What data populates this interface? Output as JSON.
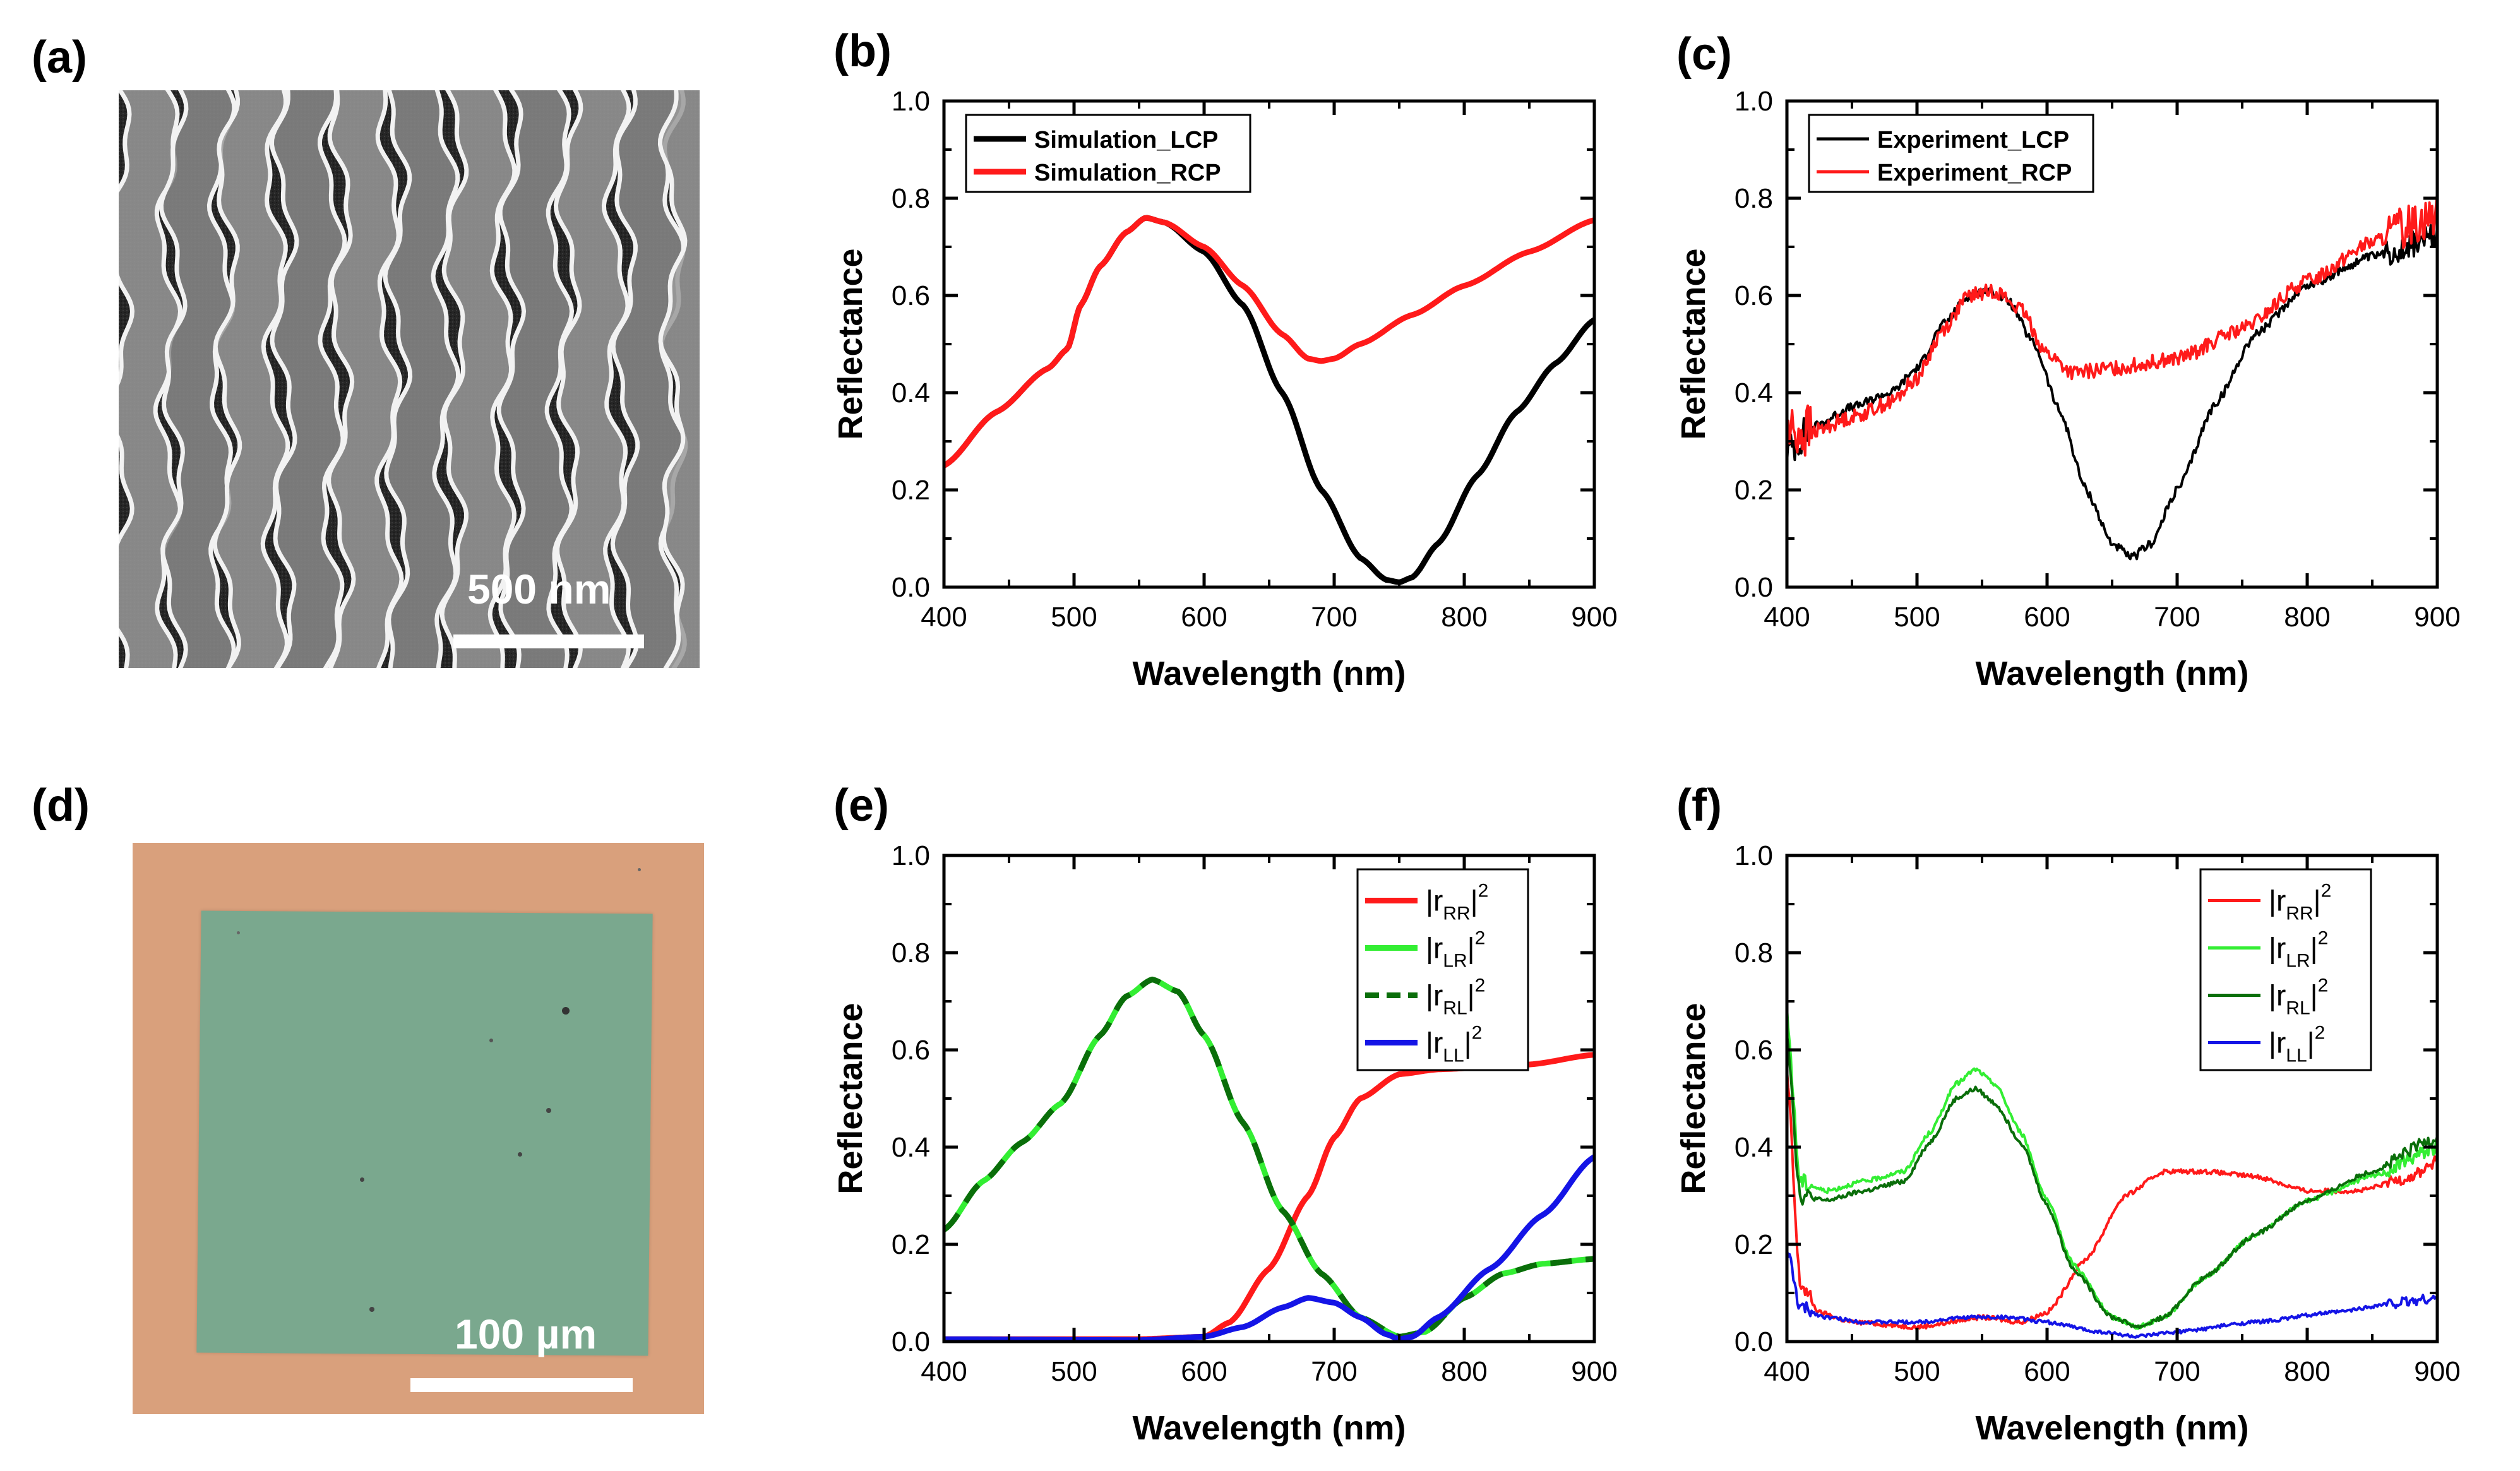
{
  "panel_labels": {
    "a": "(a)",
    "b": "(b)",
    "c": "(c)",
    "d": "(d)",
    "e": "(e)",
    "f": "(f)"
  },
  "images": {
    "sem": {
      "scale_label": "500 nm"
    },
    "optical": {
      "scale_label": "100 µm"
    }
  },
  "colors": {
    "black": "#000000",
    "red": "#ff1a1a",
    "green_light": "#33ee33",
    "green_dark": "#0a6e0a",
    "blue": "#1414e6",
    "sample_orange": "#d9a07c",
    "sample_green": "#7aa88e"
  },
  "chart_data": [
    {
      "id": "b",
      "type": "line",
      "xlabel": "Wavelength (nm)",
      "ylabel": "Reflectance",
      "xlim": [
        400,
        900
      ],
      "ylim": [
        0,
        1.0
      ],
      "xticks": [
        "400",
        "500",
        "600",
        "700",
        "800",
        "900"
      ],
      "yticks": [
        "0.0",
        "0.2",
        "0.4",
        "0.6",
        "0.8",
        "1.0"
      ],
      "legend_position": "top-left",
      "series": [
        {
          "name": "Simulation_LCP",
          "color": "#000000",
          "style": "solid",
          "noise": 0,
          "x": [
            400,
            440,
            480,
            495,
            505,
            520,
            540,
            555,
            570,
            600,
            630,
            660,
            690,
            720,
            740,
            750,
            760,
            780,
            810,
            840,
            870,
            900
          ],
          "y": [
            0.25,
            0.36,
            0.45,
            0.49,
            0.58,
            0.66,
            0.73,
            0.76,
            0.75,
            0.69,
            0.58,
            0.4,
            0.2,
            0.06,
            0.015,
            0.01,
            0.02,
            0.09,
            0.23,
            0.36,
            0.46,
            0.55
          ]
        },
        {
          "name": "Simulation_RCP",
          "color": "#ff1a1a",
          "style": "solid",
          "noise": 0,
          "x": [
            400,
            440,
            480,
            495,
            505,
            520,
            540,
            555,
            570,
            600,
            630,
            660,
            680,
            690,
            700,
            720,
            760,
            800,
            850,
            900
          ],
          "y": [
            0.25,
            0.36,
            0.45,
            0.49,
            0.58,
            0.66,
            0.73,
            0.76,
            0.75,
            0.7,
            0.62,
            0.52,
            0.47,
            0.465,
            0.47,
            0.5,
            0.56,
            0.62,
            0.69,
            0.755
          ]
        }
      ]
    },
    {
      "id": "c",
      "type": "line",
      "xlabel": "Wavelength (nm)",
      "ylabel": "Reflectance",
      "xlim": [
        400,
        900
      ],
      "ylim": [
        0,
        1.0
      ],
      "xticks": [
        "400",
        "500",
        "600",
        "700",
        "800",
        "900"
      ],
      "yticks": [
        "0.0",
        "0.2",
        "0.4",
        "0.6",
        "0.8",
        "1.0"
      ],
      "legend_position": "top-left",
      "series": [
        {
          "name": "Experiment_LCP",
          "color": "#000000",
          "style": "solid",
          "noise": 0.03,
          "x": [
            400,
            420,
            450,
            480,
            500,
            520,
            540,
            555,
            570,
            590,
            610,
            630,
            650,
            665,
            680,
            700,
            730,
            760,
            800,
            850,
            900
          ],
          "y": [
            0.28,
            0.33,
            0.37,
            0.4,
            0.45,
            0.54,
            0.6,
            0.61,
            0.59,
            0.5,
            0.36,
            0.2,
            0.09,
            0.06,
            0.09,
            0.2,
            0.38,
            0.52,
            0.62,
            0.68,
            0.72
          ]
        },
        {
          "name": "Experiment_RCP",
          "color": "#ff1a1a",
          "style": "solid",
          "noise": 0.05,
          "x": [
            400,
            420,
            450,
            480,
            500,
            520,
            540,
            560,
            580,
            600,
            620,
            650,
            700,
            750,
            800,
            850,
            900
          ],
          "y": [
            0.32,
            0.32,
            0.35,
            0.38,
            0.43,
            0.53,
            0.6,
            0.61,
            0.57,
            0.48,
            0.44,
            0.45,
            0.47,
            0.53,
            0.63,
            0.71,
            0.77
          ]
        }
      ]
    },
    {
      "id": "e",
      "type": "line",
      "xlabel": "Wavelength (nm)",
      "ylabel": "Reflectance",
      "xlim": [
        400,
        900
      ],
      "ylim": [
        0,
        1.0
      ],
      "xticks": [
        "400",
        "500",
        "600",
        "700",
        "800",
        "900"
      ],
      "yticks": [
        "0.0",
        "0.2",
        "0.4",
        "0.6",
        "0.8",
        "1.0"
      ],
      "legend_position": "top-right",
      "series": [
        {
          "name": "|rRR|²",
          "main": "|r",
          "sub": "RR",
          "sup": "2",
          "color": "#ff1a1a",
          "style": "solid",
          "noise": 0,
          "x": [
            400,
            550,
            600,
            620,
            650,
            680,
            700,
            720,
            750,
            780,
            850,
            900
          ],
          "y": [
            0.005,
            0.005,
            0.01,
            0.04,
            0.15,
            0.3,
            0.42,
            0.5,
            0.55,
            0.56,
            0.57,
            0.59
          ]
        },
        {
          "name": "|rLR|²",
          "main": "|r",
          "sub": "LR",
          "sup": "2",
          "color": "#33ee33",
          "style": "solid",
          "noise": 0,
          "x": [
            400,
            430,
            460,
            490,
            520,
            540,
            560,
            580,
            600,
            630,
            660,
            690,
            720,
            750,
            770,
            800,
            830,
            860,
            900
          ],
          "y": [
            0.23,
            0.33,
            0.41,
            0.49,
            0.63,
            0.71,
            0.745,
            0.72,
            0.63,
            0.45,
            0.27,
            0.14,
            0.05,
            0.01,
            0.02,
            0.09,
            0.14,
            0.16,
            0.17
          ]
        },
        {
          "name": "|rRL|²",
          "main": "|r",
          "sub": "RL",
          "sup": "2",
          "color": "#0a6e0a",
          "style": "dashed",
          "noise": 0,
          "x": [
            400,
            430,
            460,
            490,
            520,
            540,
            560,
            580,
            600,
            630,
            660,
            690,
            720,
            750,
            770,
            800,
            830,
            860,
            900
          ],
          "y": [
            0.23,
            0.33,
            0.41,
            0.49,
            0.63,
            0.71,
            0.745,
            0.72,
            0.63,
            0.45,
            0.27,
            0.14,
            0.05,
            0.01,
            0.02,
            0.09,
            0.14,
            0.16,
            0.17
          ]
        },
        {
          "name": "|rLL|²",
          "main": "|r",
          "sub": "LL",
          "sup": "2",
          "color": "#1414e6",
          "style": "solid",
          "noise": 0,
          "x": [
            400,
            550,
            600,
            630,
            660,
            680,
            700,
            720,
            740,
            750,
            760,
            780,
            820,
            860,
            900
          ],
          "y": [
            0.005,
            0.003,
            0.01,
            0.03,
            0.07,
            0.09,
            0.08,
            0.05,
            0.015,
            0.005,
            0.01,
            0.05,
            0.15,
            0.26,
            0.38
          ]
        }
      ]
    },
    {
      "id": "f",
      "type": "line",
      "xlabel": "Wavelength (nm)",
      "ylabel": "Reflectance",
      "xlim": [
        400,
        900
      ],
      "ylim": [
        0,
        1.0
      ],
      "xticks": [
        "400",
        "500",
        "600",
        "700",
        "800",
        "900"
      ],
      "yticks": [
        "0.0",
        "0.2",
        "0.4",
        "0.6",
        "0.8",
        "1.0"
      ],
      "legend_position": "top-right",
      "series": [
        {
          "name": "|rRR|²",
          "main": "|r",
          "sub": "RR",
          "sup": "2",
          "color": "#ff1a1a",
          "style": "solid",
          "noise": 0.015,
          "x": [
            400,
            410,
            425,
            450,
            500,
            550,
            580,
            600,
            630,
            660,
            690,
            720,
            760,
            800,
            840,
            880,
            900
          ],
          "y": [
            0.55,
            0.12,
            0.06,
            0.04,
            0.03,
            0.05,
            0.04,
            0.06,
            0.17,
            0.3,
            0.35,
            0.35,
            0.34,
            0.31,
            0.31,
            0.34,
            0.37
          ]
        },
        {
          "name": "|rLR|²",
          "main": "|r",
          "sub": "LR",
          "sup": "2",
          "color": "#33ee33",
          "style": "solid",
          "noise": 0.015,
          "x": [
            400,
            410,
            430,
            460,
            490,
            510,
            530,
            545,
            560,
            580,
            600,
            620,
            650,
            670,
            690,
            720,
            760,
            800,
            850,
            900
          ],
          "y": [
            0.67,
            0.33,
            0.31,
            0.33,
            0.35,
            0.43,
            0.53,
            0.56,
            0.53,
            0.43,
            0.29,
            0.16,
            0.05,
            0.03,
            0.05,
            0.13,
            0.22,
            0.29,
            0.34,
            0.4
          ]
        },
        {
          "name": "|rRL|²",
          "main": "|r",
          "sub": "RL",
          "sup": "2",
          "color": "#0a6e0a",
          "style": "solid",
          "noise": 0.015,
          "x": [
            400,
            410,
            430,
            460,
            490,
            510,
            530,
            545,
            560,
            580,
            600,
            620,
            650,
            670,
            690,
            720,
            760,
            800,
            850,
            900
          ],
          "y": [
            0.64,
            0.3,
            0.29,
            0.31,
            0.33,
            0.41,
            0.5,
            0.52,
            0.49,
            0.41,
            0.28,
            0.15,
            0.05,
            0.03,
            0.05,
            0.13,
            0.22,
            0.29,
            0.35,
            0.42
          ]
        },
        {
          "name": "|rLL|²",
          "main": "|r",
          "sub": "LL",
          "sup": "2",
          "color": "#1414e6",
          "style": "solid",
          "noise": 0.012,
          "x": [
            400,
            410,
            430,
            460,
            500,
            540,
            570,
            600,
            640,
            670,
            700,
            760,
            820,
            870,
            900
          ],
          "y": [
            0.19,
            0.07,
            0.05,
            0.04,
            0.04,
            0.05,
            0.05,
            0.04,
            0.02,
            0.01,
            0.02,
            0.04,
            0.06,
            0.08,
            0.09
          ]
        }
      ]
    }
  ]
}
